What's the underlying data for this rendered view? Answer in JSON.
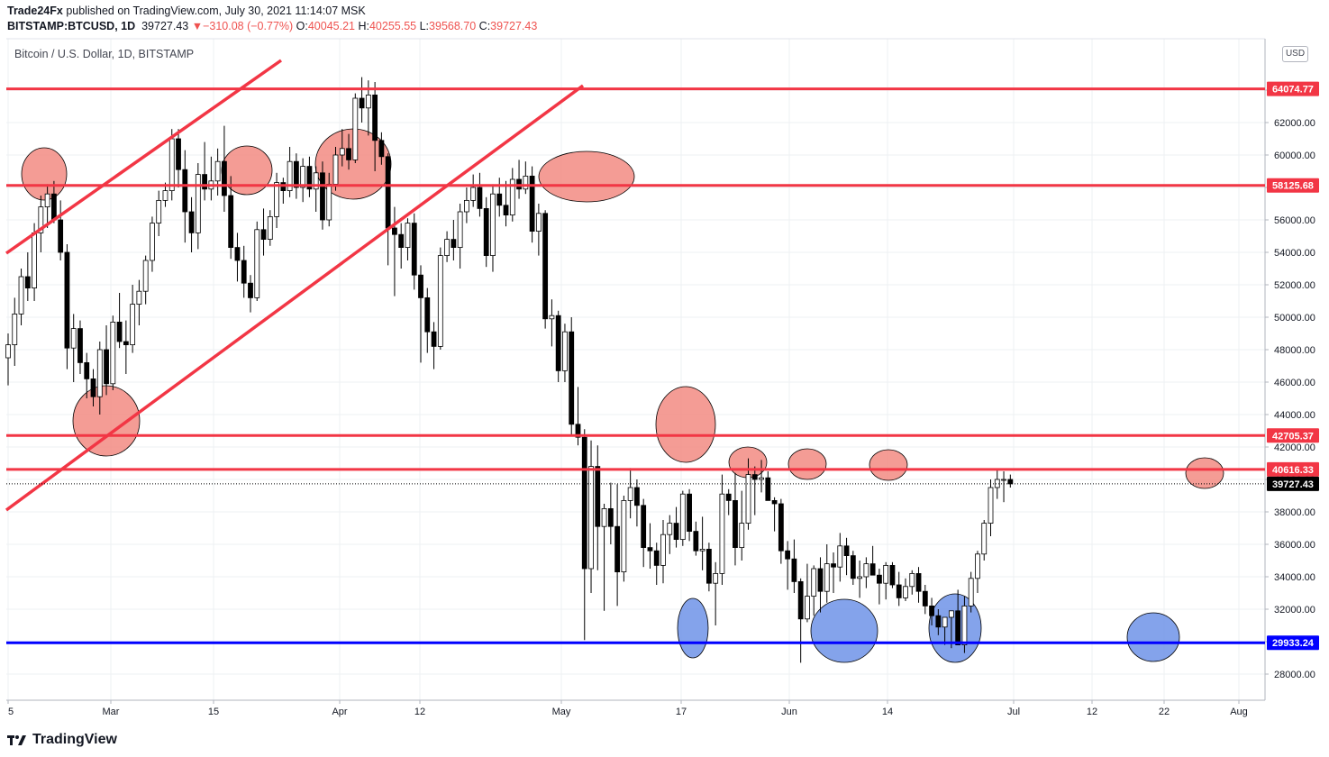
{
  "header": {
    "author": "Trade24Fx",
    "published_text": "published on TradingView.com, July 30, 2021 11:14:07 MSK",
    "symbol": "BITSTAMP:BTCUSD, 1D",
    "last": "39727.43",
    "change_arrow": "▼",
    "change": "−310.08 (−0.77%)",
    "open_label": "O:",
    "open": "40045.21",
    "high_label": "H:",
    "high": "40255.55",
    "low_label": "L:",
    "low": "39568.70",
    "close_label": "C:",
    "close": "39727.43"
  },
  "chart_title": "Bitcoin / U.S. Dollar, 1D, BITSTAMP",
  "currency_badge": "USD",
  "footer": {
    "brand": "TradingView"
  },
  "colors": {
    "bull": "#ffffff",
    "bear": "#000000",
    "resistance": "#f23645",
    "support": "#0000ff",
    "red_zone": "#f28b82",
    "blue_zone": "#6f93e8",
    "grid": "#eef0f3"
  },
  "chart_data": {
    "type": "candlestick",
    "title": "Bitcoin / U.S. Dollar, 1D, BITSTAMP",
    "ylim": [
      26000,
      67000
    ],
    "x_tick_labels": [
      "5",
      "Mar",
      "15",
      "Apr",
      "12",
      "May",
      "17",
      "Jun",
      "14",
      "Jul",
      "12",
      "22",
      "Aug"
    ],
    "y_tick_labels": [
      "28000.00",
      "30000.00",
      "32000.00",
      "34000.00",
      "36000.00",
      "38000.00",
      "40000.00",
      "42000.00",
      "44000.00",
      "46000.00",
      "48000.00",
      "50000.00",
      "52000.00",
      "54000.00",
      "56000.00",
      "58000.00",
      "60000.00",
      "62000.00",
      "64000.00"
    ],
    "horizontal_levels": [
      {
        "label": "64074.77",
        "value": 64074.77,
        "color": "#f23645"
      },
      {
        "label": "58125.68",
        "value": 58125.68,
        "color": "#f23645"
      },
      {
        "label": "42705.37",
        "value": 42705.37,
        "color": "#f23645"
      },
      {
        "label": "40616.33",
        "value": 40616.33,
        "color": "#f23645"
      },
      {
        "label": "29933.24",
        "value": 29933.24,
        "color": "#0000ff"
      }
    ],
    "last_price": {
      "label": "39727.43",
      "value": 39727.43
    },
    "candles": [
      [
        47500,
        49000,
        45800,
        48300
      ],
      [
        48300,
        51200,
        47000,
        50200
      ],
      [
        50200,
        53000,
        49500,
        52500
      ],
      [
        52500,
        54000,
        51000,
        51800
      ],
      [
        51800,
        55800,
        51000,
        55200
      ],
      [
        55200,
        57500,
        54000,
        56800
      ],
      [
        56800,
        58200,
        55500,
        57600
      ],
      [
        57600,
        58400,
        55800,
        56000
      ],
      [
        56000,
        57200,
        53500,
        54000
      ],
      [
        54000,
        54500,
        46800,
        48100
      ],
      [
        48100,
        50200,
        46000,
        49300
      ],
      [
        49300,
        49800,
        46500,
        47200
      ],
      [
        47200,
        47800,
        45000,
        46200
      ],
      [
        46200,
        46800,
        44500,
        45100
      ],
      [
        45100,
        48500,
        44000,
        48000
      ],
      [
        48000,
        49500,
        45200,
        45900
      ],
      [
        45900,
        50100,
        45500,
        49700
      ],
      [
        49700,
        51500,
        48100,
        48500
      ],
      [
        48500,
        49800,
        46500,
        48300
      ],
      [
        48300,
        52000,
        47800,
        50800
      ],
      [
        50800,
        52300,
        49500,
        51600
      ],
      [
        51600,
        53800,
        50800,
        53500
      ],
      [
        53500,
        56200,
        52800,
        55800
      ],
      [
        55800,
        57800,
        55000,
        57200
      ],
      [
        57200,
        58300,
        56800,
        57800
      ],
      [
        57800,
        61600,
        57200,
        61000
      ],
      [
        61000,
        61600,
        58000,
        59100
      ],
      [
        59100,
        60300,
        54600,
        56500
      ],
      [
        56500,
        57400,
        54000,
        55200
      ],
      [
        55200,
        59500,
        54200,
        58800
      ],
      [
        58800,
        60800,
        57200,
        57900
      ],
      [
        57900,
        59900,
        57200,
        58400
      ],
      [
        58400,
        60400,
        57500,
        59600
      ],
      [
        59600,
        61800,
        56500,
        57500
      ],
      [
        57500,
        58700,
        53600,
        54300
      ],
      [
        54300,
        55200,
        52200,
        53500
      ],
      [
        53500,
        54400,
        51200,
        52100
      ],
      [
        52100,
        52600,
        50300,
        51200
      ],
      [
        51200,
        55900,
        51000,
        55400
      ],
      [
        55400,
        56700,
        53800,
        54800
      ],
      [
        54800,
        56600,
        54400,
        56200
      ],
      [
        56200,
        58900,
        55500,
        58300
      ],
      [
        58300,
        58600,
        57000,
        57800
      ],
      [
        57800,
        60500,
        57400,
        59600
      ],
      [
        59600,
        60100,
        57300,
        58000
      ],
      [
        58000,
        59800,
        57100,
        59300
      ],
      [
        59300,
        59900,
        57400,
        57900
      ],
      [
        57900,
        59300,
        56500,
        58900
      ],
      [
        58900,
        59600,
        55400,
        56000
      ],
      [
        56000,
        58900,
        55600,
        58200
      ],
      [
        58200,
        60500,
        57800,
        60000
      ],
      [
        60000,
        61600,
        59300,
        60400
      ],
      [
        60400,
        61300,
        59100,
        59700
      ],
      [
        59700,
        63800,
        59500,
        63500
      ],
      [
        63500,
        64800,
        62000,
        62900
      ],
      [
        62900,
        64600,
        61200,
        63700
      ],
      [
        63700,
        64500,
        59000,
        60900
      ],
      [
        60900,
        61400,
        59400,
        59900
      ],
      [
        59900,
        60100,
        53200,
        55500
      ],
      [
        55500,
        56800,
        51300,
        55100
      ],
      [
        55100,
        55800,
        53000,
        54300
      ],
      [
        54300,
        56100,
        53500,
        55800
      ],
      [
        55800,
        56400,
        51700,
        52600
      ],
      [
        52600,
        53200,
        47200,
        51200
      ],
      [
        51200,
        51800,
        47800,
        49100
      ],
      [
        49100,
        49700,
        46800,
        48200
      ],
      [
        48200,
        54300,
        48000,
        53800
      ],
      [
        53800,
        55300,
        53400,
        54800
      ],
      [
        54800,
        56000,
        53500,
        54300
      ],
      [
        54300,
        57000,
        53000,
        56500
      ],
      [
        56500,
        58000,
        55800,
        57200
      ],
      [
        57200,
        58800,
        56800,
        58000
      ],
      [
        58000,
        58900,
        56200,
        56700
      ],
      [
        56700,
        57400,
        53100,
        53800
      ],
      [
        53800,
        58200,
        52800,
        57600
      ],
      [
        57600,
        58600,
        56200,
        56900
      ],
      [
        56900,
        58400,
        55600,
        56300
      ],
      [
        56300,
        59200,
        55900,
        58500
      ],
      [
        58500,
        59700,
        57300,
        57900
      ],
      [
        57900,
        59600,
        57600,
        58700
      ],
      [
        58700,
        59300,
        54600,
        55300
      ],
      [
        55300,
        57000,
        53800,
        56400
      ],
      [
        56400,
        56600,
        49300,
        49900
      ],
      [
        49900,
        51100,
        48200,
        50100
      ],
      [
        50100,
        50400,
        46000,
        46700
      ],
      [
        46700,
        49600,
        46000,
        49100
      ],
      [
        49100,
        50000,
        42700,
        43400
      ],
      [
        43400,
        45700,
        42100,
        42600
      ],
      [
        42600,
        43100,
        30100,
        34500
      ],
      [
        34500,
        42400,
        33000,
        40800
      ],
      [
        40800,
        42100,
        34400,
        37100
      ],
      [
        37100,
        38500,
        31900,
        38200
      ],
      [
        38200,
        39800,
        36000,
        37100
      ],
      [
        37100,
        39700,
        32200,
        34300
      ],
      [
        34300,
        39000,
        33700,
        38700
      ],
      [
        38700,
        40700,
        37600,
        39500
      ],
      [
        39500,
        40000,
        37100,
        38400
      ],
      [
        38400,
        38800,
        34600,
        35800
      ],
      [
        35800,
        37300,
        34500,
        35600
      ],
      [
        35600,
        36100,
        33500,
        34700
      ],
      [
        34700,
        37500,
        33600,
        36600
      ],
      [
        36600,
        37800,
        35400,
        37300
      ],
      [
        37300,
        38300,
        35800,
        36300
      ],
      [
        36300,
        39300,
        35900,
        39100
      ],
      [
        39100,
        39400,
        36200,
        36800
      ],
      [
        36800,
        37400,
        35300,
        35600
      ],
      [
        35600,
        37700,
        34400,
        35700
      ],
      [
        35700,
        36100,
        33100,
        33600
      ],
      [
        33600,
        34900,
        31000,
        34200
      ],
      [
        34200,
        40300,
        33500,
        39100
      ],
      [
        39100,
        39400,
        37800,
        38700
      ],
      [
        38700,
        40400,
        34700,
        35800
      ],
      [
        35800,
        39300,
        35000,
        37300
      ],
      [
        37300,
        41300,
        36900,
        40300
      ],
      [
        40300,
        40800,
        37800,
        40000
      ],
      [
        40000,
        41200,
        39200,
        40100
      ],
      [
        40100,
        40500,
        38700,
        38700
      ],
      [
        38700,
        38900,
        36800,
        38500
      ],
      [
        38500,
        38800,
        34800,
        35600
      ],
      [
        35600,
        36200,
        33200,
        35100
      ],
      [
        35100,
        36300,
        33000,
        33700
      ],
      [
        33700,
        33900,
        28700,
        31400
      ],
      [
        31400,
        34800,
        31200,
        32800
      ],
      [
        32800,
        34700,
        31600,
        34500
      ],
      [
        34500,
        35200,
        31800,
        33100
      ],
      [
        33100,
        36000,
        32400,
        34800
      ],
      [
        34800,
        35500,
        33000,
        34600
      ],
      [
        34600,
        36700,
        33700,
        35900
      ],
      [
        35900,
        36400,
        34100,
        35300
      ],
      [
        35300,
        35600,
        33500,
        33900
      ],
      [
        33900,
        35000,
        32700,
        34000
      ],
      [
        34000,
        35200,
        33300,
        34800
      ],
      [
        34800,
        35900,
        34300,
        34100
      ],
      [
        34100,
        34500,
        32300,
        33600
      ],
      [
        33600,
        34900,
        32600,
        34700
      ],
      [
        34700,
        34900,
        33300,
        33500
      ],
      [
        33500,
        34300,
        32200,
        32700
      ],
      [
        32700,
        33900,
        32500,
        33400
      ],
      [
        33400,
        34400,
        32900,
        34200
      ],
      [
        34200,
        34600,
        32400,
        33100
      ],
      [
        33100,
        33500,
        31700,
        32200
      ],
      [
        32200,
        32700,
        31000,
        31600
      ],
      [
        31600,
        32000,
        30400,
        30900
      ],
      [
        30900,
        31300,
        29800,
        31500
      ],
      [
        31500,
        31900,
        29600,
        31900
      ],
      [
        31900,
        33200,
        30200,
        29800
      ],
      [
        29800,
        32800,
        29300,
        32200
      ],
      [
        32200,
        34300,
        31800,
        33900
      ],
      [
        33900,
        35600,
        33000,
        35400
      ],
      [
        35400,
        37500,
        35000,
        37300
      ],
      [
        37300,
        40000,
        36500,
        39500
      ],
      [
        39500,
        40600,
        38800,
        40000
      ],
      [
        40000,
        40500,
        38600,
        40000
      ],
      [
        40000,
        40300,
        39500,
        39727
      ]
    ]
  }
}
